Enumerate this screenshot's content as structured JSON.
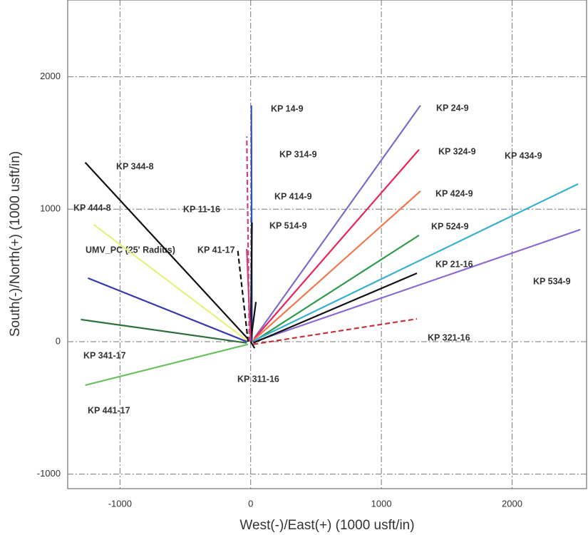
{
  "chart_data": {
    "type": "line",
    "x_label": "West(-)/East(+) (1000 usft/in)",
    "y_label": "South(-)/North(+) (1000 usft/in)",
    "xlim": [
      -1400,
      2570
    ],
    "ylim": [
      -1110,
      2580
    ],
    "xticks": [
      -1000,
      0,
      1000,
      2000
    ],
    "yticks": [
      -1000,
      0,
      1000,
      2000
    ],
    "grid": true,
    "annotations": [
      "UMV_PC (25' Radius)"
    ],
    "series": [
      {
        "name": "KP 24-9",
        "color": "#7b6ccc",
        "x": [
          30,
          1299
        ],
        "values": [
          30,
          1784
        ]
      },
      {
        "name": "KP 324-9",
        "color": "#e8245a",
        "x": [
          25,
          1288
        ],
        "values": [
          20,
          1450
        ]
      },
      {
        "name": "KP 424-9",
        "color": "#f07850",
        "x": [
          20,
          1299
        ],
        "values": [
          10,
          1137
        ]
      },
      {
        "name": "KP 524-9",
        "color": "#2e9a4a",
        "x": [
          20,
          1288
        ],
        "values": [
          0,
          803
        ]
      },
      {
        "name": "KP 434-9",
        "color": "#3ab0d0",
        "x": [
          30,
          2505
        ],
        "values": [
          10,
          1191
        ]
      },
      {
        "name": "KP 534-9",
        "color": "#8a6ad0",
        "x": [
          30,
          2522
        ],
        "values": [
          0,
          846
        ]
      },
      {
        "name": "KP 21-16",
        "color": "#111111",
        "x": [
          20,
          1272
        ],
        "values": [
          -10,
          517
        ]
      },
      {
        "name": "KP 321-16",
        "color": "#c8303a",
        "dashed": true,
        "x": [
          20,
          1272
        ],
        "values": [
          -20,
          172
        ]
      },
      {
        "name": "KP 14-9",
        "color": "#3050c0",
        "x": [
          10,
          5
        ],
        "values": [
          0,
          1784
        ]
      },
      {
        "name": "KP 314-9",
        "color": "#d04080",
        "dashed": true,
        "x": [
          -10,
          -30
        ],
        "values": [
          0,
          1550
        ]
      },
      {
        "name": "KP 414-9",
        "color": "#111111",
        "x": [
          0,
          10
        ],
        "values": [
          0,
          900
        ]
      },
      {
        "name": "KP 514-9",
        "color": "#111111",
        "x": [
          0,
          40
        ],
        "values": [
          0,
          300
        ]
      },
      {
        "name": "KP 11-16",
        "color": "#111111",
        "dashed": true,
        "x": [
          -20,
          -100
        ],
        "values": [
          0,
          700
        ]
      },
      {
        "name": "KP 41-17",
        "color": "#d04080",
        "x": [
          0,
          -30
        ],
        "values": [
          0,
          700
        ]
      },
      {
        "name": "KP 344-8",
        "color": "#111111",
        "x": [
          -20,
          -1266
        ],
        "values": [
          20,
          1353
        ]
      },
      {
        "name": "KP 444-8",
        "color": "#e8f07a",
        "x": [
          -30,
          -1201
        ],
        "values": [
          10,
          884
        ]
      },
      {
        "color": "#3a3ab0",
        "x": [
          -30,
          -1245
        ],
        "values": [
          0,
          480
        ]
      },
      {
        "name": "KP 341-17",
        "color": "#2f6f3f",
        "x": [
          -30,
          -1299
        ],
        "values": [
          -10,
          167
        ]
      },
      {
        "name": "KP 441-17",
        "color": "#6ac060",
        "x": [
          -20,
          -1266
        ],
        "values": [
          -20,
          -329
        ]
      },
      {
        "name": "KP 311-16",
        "color": "#111111",
        "x": [
          0,
          30
        ],
        "values": [
          0,
          -50
        ]
      }
    ]
  }
}
